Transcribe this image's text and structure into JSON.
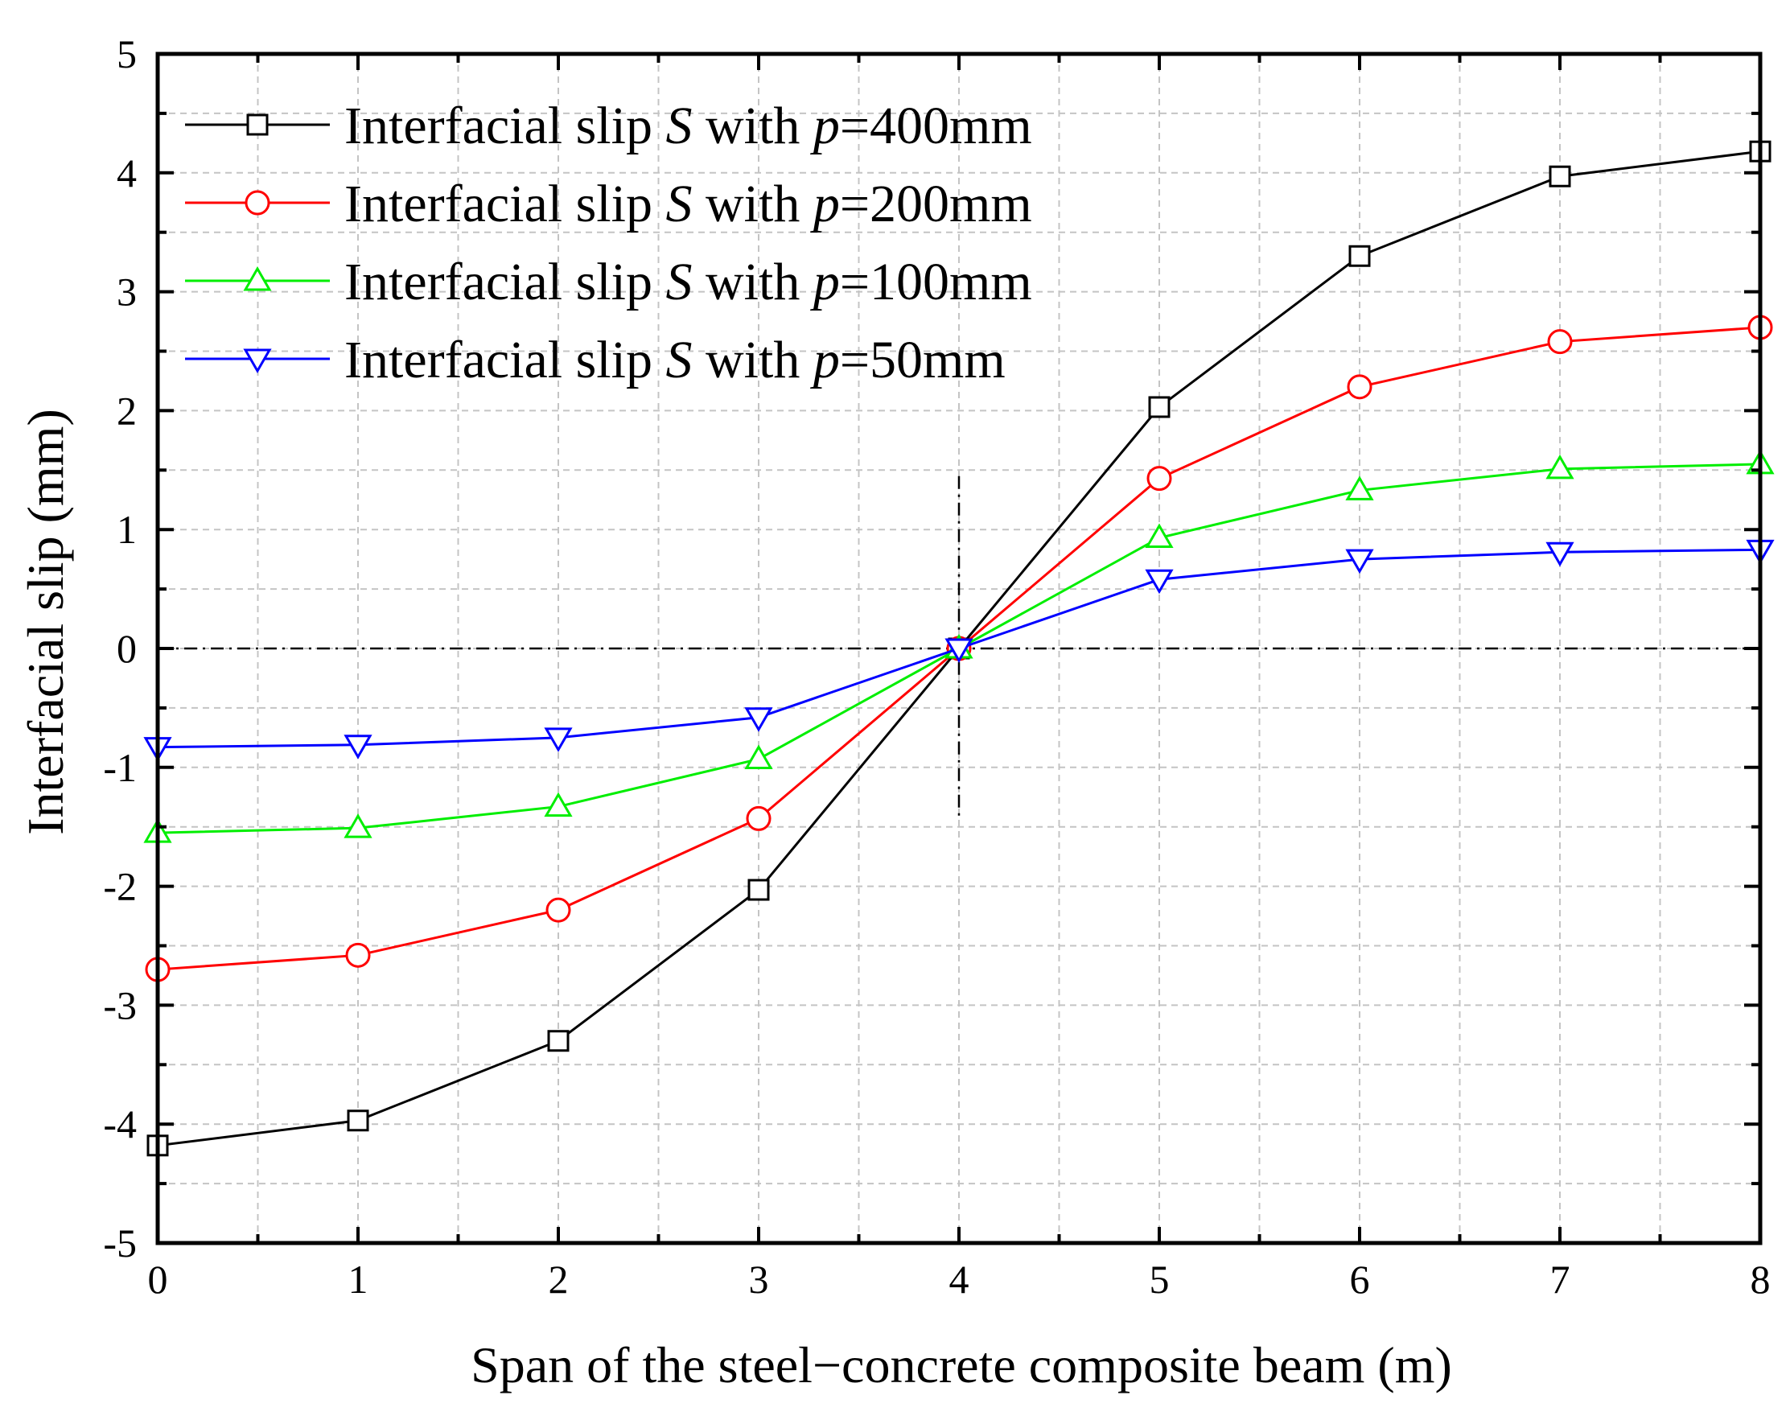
{
  "chart_data": {
    "type": "line",
    "xlabel": "Span of the steel−concrete composite beam (m)",
    "ylabel": "Interfacial slip (mm)",
    "xlim": [
      0,
      8
    ],
    "ylim": [
      -5,
      5
    ],
    "xticks": [
      0,
      1,
      2,
      3,
      4,
      5,
      6,
      7,
      8
    ],
    "yticks": [
      -5,
      -4,
      -3,
      -2,
      -1,
      0,
      1,
      2,
      3,
      4,
      5
    ],
    "grid": true,
    "legend_position": "top-left",
    "reference_lines": {
      "horizontal_y": 0,
      "vertical_x": 4,
      "vertical_range": [
        -1.45,
        1.45
      ]
    },
    "series": [
      {
        "name": "400",
        "legend_prefix": "Interfacial slip ",
        "legend_var": "S",
        "legend_mid": " with ",
        "legend_param": "p",
        "legend_suffix": "=400mm",
        "color": "#000000",
        "marker": "square",
        "x": [
          0,
          1,
          2,
          3,
          4,
          5,
          6,
          7,
          8
        ],
        "values": [
          -4.18,
          -3.97,
          -3.3,
          -2.03,
          0,
          2.03,
          3.3,
          3.97,
          4.18
        ]
      },
      {
        "name": "200",
        "legend_prefix": "Interfacial slip ",
        "legend_var": "S",
        "legend_mid": " with ",
        "legend_param": "p",
        "legend_suffix": "=200mm",
        "color": "#ff0000",
        "marker": "circle",
        "x": [
          0,
          1,
          2,
          3,
          4,
          5,
          6,
          7,
          8
        ],
        "values": [
          -2.7,
          -2.58,
          -2.2,
          -1.43,
          0,
          1.43,
          2.2,
          2.58,
          2.7
        ]
      },
      {
        "name": "100",
        "legend_prefix": "Interfacial slip ",
        "legend_var": "S",
        "legend_mid": " with ",
        "legend_param": "p",
        "legend_suffix": "=100mm",
        "color": "#00ee00",
        "marker": "triangle-up",
        "x": [
          0,
          1,
          2,
          3,
          4,
          5,
          6,
          7,
          8
        ],
        "values": [
          -1.55,
          -1.51,
          -1.33,
          -0.93,
          0,
          0.93,
          1.33,
          1.51,
          1.55
        ]
      },
      {
        "name": "50",
        "legend_prefix": "Interfacial slip ",
        "legend_var": "S",
        "legend_mid": " with ",
        "legend_param": "p",
        "legend_suffix": "=50mm",
        "color": "#0000ff",
        "marker": "triangle-down",
        "x": [
          0,
          1,
          2,
          3,
          4,
          5,
          6,
          7,
          8
        ],
        "values": [
          -0.83,
          -0.81,
          -0.75,
          -0.58,
          0,
          0.58,
          0.75,
          0.81,
          0.83
        ]
      }
    ]
  }
}
